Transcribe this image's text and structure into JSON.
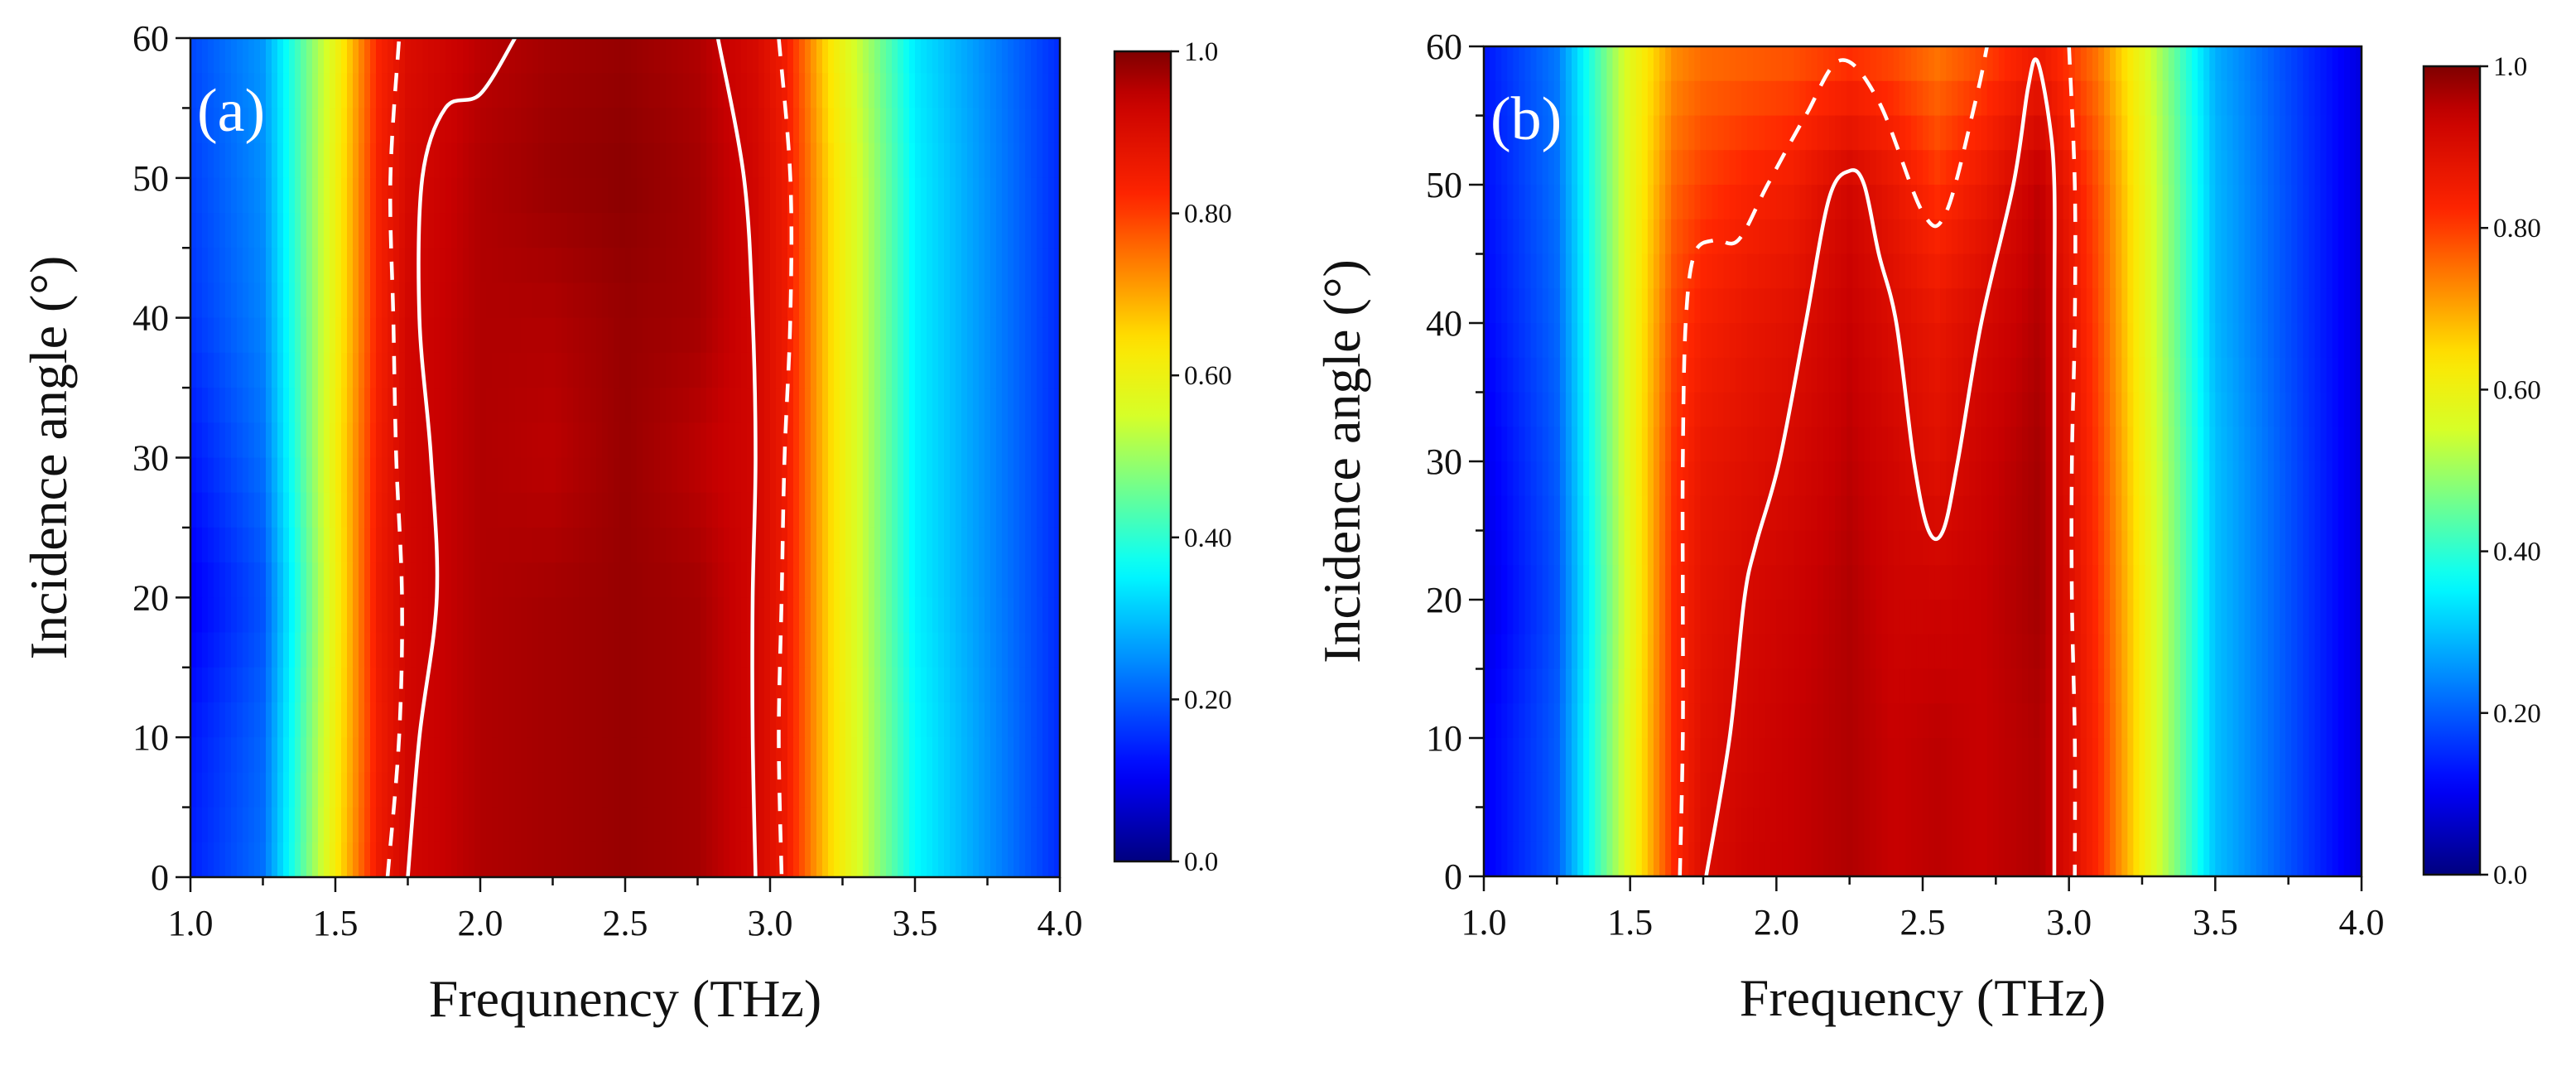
{
  "colormap": {
    "name": "jet",
    "stops": [
      {
        "t": 0.0,
        "color": "#00007f"
      },
      {
        "t": 0.11,
        "color": "#0000ff"
      },
      {
        "t": 0.36,
        "color": "#00ffff"
      },
      {
        "t": 0.55,
        "color": "#d6ff28"
      },
      {
        "t": 0.64,
        "color": "#ffe600"
      },
      {
        "t": 0.82,
        "color": "#ff2600"
      },
      {
        "t": 0.94,
        "color": "#c80000"
      },
      {
        "t": 1.0,
        "color": "#7f0000"
      }
    ]
  },
  "chart_data": [
    {
      "panel_label": "(a)",
      "type": "heatmap",
      "xlabel": "Frequnency (THz)",
      "ylabel": "Incidence angle (°)",
      "xlim": [
        1.0,
        4.0
      ],
      "ylim": [
        0,
        60
      ],
      "x_ticks": [
        "1.0",
        "1.5",
        "2.0",
        "2.5",
        "3.0",
        "3.5",
        "4.0"
      ],
      "y_ticks": [
        "0",
        "10",
        "20",
        "30",
        "40",
        "50",
        "60"
      ],
      "colorbar": {
        "range": [
          0.0,
          1.0
        ],
        "tick_labels": [
          "0.0",
          "0.20",
          "0.40",
          "0.60",
          "0.80",
          "1.0"
        ]
      },
      "x": [
        1.0,
        1.25,
        1.5,
        1.65,
        1.75,
        2.0,
        2.25,
        2.5,
        2.75,
        2.95,
        3.05,
        3.2,
        3.5,
        4.0
      ],
      "y": [
        0,
        10,
        20,
        30,
        40,
        50,
        60
      ],
      "z": [
        [
          0.14,
          0.22,
          0.62,
          0.86,
          0.92,
          0.96,
          0.97,
          0.98,
          0.97,
          0.92,
          0.86,
          0.66,
          0.36,
          0.15
        ],
        [
          0.13,
          0.21,
          0.61,
          0.85,
          0.92,
          0.96,
          0.97,
          0.98,
          0.97,
          0.92,
          0.86,
          0.66,
          0.36,
          0.15
        ],
        [
          0.1,
          0.19,
          0.6,
          0.86,
          0.92,
          0.96,
          0.97,
          0.98,
          0.97,
          0.92,
          0.86,
          0.66,
          0.35,
          0.15
        ],
        [
          0.13,
          0.22,
          0.61,
          0.85,
          0.92,
          0.96,
          0.95,
          0.98,
          0.95,
          0.92,
          0.86,
          0.66,
          0.35,
          0.15
        ],
        [
          0.16,
          0.24,
          0.6,
          0.84,
          0.92,
          0.96,
          0.96,
          0.98,
          0.97,
          0.92,
          0.86,
          0.66,
          0.35,
          0.15
        ],
        [
          0.17,
          0.25,
          0.6,
          0.84,
          0.91,
          0.96,
          0.98,
          0.99,
          0.97,
          0.92,
          0.86,
          0.66,
          0.35,
          0.15
        ],
        [
          0.18,
          0.26,
          0.59,
          0.83,
          0.9,
          0.95,
          0.97,
          0.98,
          0.96,
          0.91,
          0.85,
          0.64,
          0.34,
          0.15
        ]
      ],
      "contours": [
        {
          "level": 0.9,
          "style": "solid",
          "points": [
            [
              1.75,
              0
            ],
            [
              1.79,
              10
            ],
            [
              1.85,
              20
            ],
            [
              1.83,
              30
            ],
            [
              1.79,
              40
            ],
            [
              1.8,
              50
            ],
            [
              1.88,
              55
            ],
            [
              2.0,
              56
            ],
            [
              2.12,
              60
            ]
          ]
        },
        {
          "level": 0.9,
          "style": "solid",
          "points": [
            [
              2.82,
              60
            ],
            [
              2.91,
              50
            ],
            [
              2.94,
              40
            ],
            [
              2.95,
              30
            ],
            [
              2.94,
              20
            ],
            [
              2.94,
              10
            ],
            [
              2.95,
              0
            ]
          ]
        },
        {
          "level": 0.8,
          "style": "dashed",
          "points": [
            [
              1.68,
              0
            ],
            [
              1.72,
              10
            ],
            [
              1.73,
              20
            ],
            [
              1.71,
              30
            ],
            [
              1.7,
              40
            ],
            [
              1.69,
              50
            ],
            [
              1.72,
              60
            ]
          ]
        },
        {
          "level": 0.8,
          "style": "dashed",
          "points": [
            [
              3.03,
              60
            ],
            [
              3.07,
              50
            ],
            [
              3.07,
              40
            ],
            [
              3.05,
              30
            ],
            [
              3.04,
              20
            ],
            [
              3.03,
              10
            ],
            [
              3.04,
              0
            ]
          ]
        }
      ]
    },
    {
      "panel_label": "(b)",
      "type": "heatmap",
      "xlabel": "Frequency (THz)",
      "ylabel": "Incidence angle (°)",
      "xlim": [
        1.0,
        4.0
      ],
      "ylim": [
        0,
        60
      ],
      "x_ticks": [
        "1.0",
        "1.5",
        "2.0",
        "2.5",
        "3.0",
        "3.5",
        "4.0"
      ],
      "y_ticks": [
        "0",
        "10",
        "20",
        "30",
        "40",
        "50",
        "60"
      ],
      "colorbar": {
        "range": [
          0.0,
          1.0
        ],
        "tick_labels": [
          "0.0",
          "0.20",
          "0.40",
          "0.60",
          "0.80",
          "1.0"
        ]
      },
      "x": [
        1.0,
        1.25,
        1.5,
        1.65,
        1.75,
        1.9,
        2.05,
        2.25,
        2.4,
        2.55,
        2.7,
        2.9,
        3.0,
        3.1,
        3.25,
        3.5,
        4.0
      ],
      "y": [
        0,
        10,
        20,
        30,
        40,
        50,
        60
      ],
      "z": [
        [
          0.1,
          0.2,
          0.58,
          0.82,
          0.9,
          0.93,
          0.94,
          0.96,
          0.94,
          0.95,
          0.94,
          0.96,
          0.9,
          0.82,
          0.62,
          0.3,
          0.08
        ],
        [
          0.1,
          0.2,
          0.58,
          0.82,
          0.89,
          0.92,
          0.94,
          0.96,
          0.94,
          0.95,
          0.94,
          0.96,
          0.9,
          0.82,
          0.62,
          0.3,
          0.08
        ],
        [
          0.08,
          0.19,
          0.57,
          0.82,
          0.88,
          0.91,
          0.93,
          0.96,
          0.93,
          0.93,
          0.94,
          0.97,
          0.9,
          0.81,
          0.62,
          0.3,
          0.08
        ],
        [
          0.09,
          0.2,
          0.58,
          0.81,
          0.87,
          0.89,
          0.91,
          0.95,
          0.92,
          0.89,
          0.93,
          0.97,
          0.89,
          0.8,
          0.61,
          0.3,
          0.08
        ],
        [
          0.11,
          0.21,
          0.58,
          0.79,
          0.84,
          0.87,
          0.89,
          0.94,
          0.9,
          0.87,
          0.91,
          0.96,
          0.88,
          0.79,
          0.6,
          0.29,
          0.08
        ],
        [
          0.12,
          0.22,
          0.58,
          0.76,
          0.8,
          0.83,
          0.85,
          0.92,
          0.87,
          0.81,
          0.86,
          0.95,
          0.86,
          0.78,
          0.6,
          0.29,
          0.08
        ],
        [
          0.13,
          0.23,
          0.58,
          0.72,
          0.75,
          0.76,
          0.77,
          0.8,
          0.78,
          0.74,
          0.78,
          0.85,
          0.8,
          0.74,
          0.58,
          0.28,
          0.08
        ]
      ],
      "contours": [
        {
          "level": 0.9,
          "style": "solid",
          "points": [
            [
              1.76,
              0
            ],
            [
              1.84,
              10
            ],
            [
              1.89,
              20
            ],
            [
              1.93,
              24
            ],
            [
              2.01,
              30
            ],
            [
              2.1,
              40
            ],
            [
              2.18,
              49
            ],
            [
              2.25,
              51
            ],
            [
              2.3,
              50
            ],
            [
              2.35,
              45
            ],
            [
              2.41,
              40
            ],
            [
              2.47,
              30
            ],
            [
              2.52,
              25
            ],
            [
              2.57,
              25
            ],
            [
              2.62,
              30
            ],
            [
              2.7,
              40
            ],
            [
              2.81,
              50
            ],
            [
              2.86,
              57
            ],
            [
              2.89,
              59
            ],
            [
              2.93,
              55
            ],
            [
              2.95,
              50
            ],
            [
              2.95,
              40
            ],
            [
              2.95,
              20
            ],
            [
              2.95,
              0
            ]
          ]
        },
        {
          "level": 0.8,
          "style": "dashed",
          "points": [
            [
              1.67,
              0
            ],
            [
              1.68,
              10
            ],
            [
              1.68,
              20
            ],
            [
              1.68,
              30
            ],
            [
              1.69,
              40
            ],
            [
              1.72,
              45
            ],
            [
              1.79,
              46
            ],
            [
              1.87,
              46
            ],
            [
              1.97,
              50
            ],
            [
              2.1,
              55
            ],
            [
              2.22,
              59
            ],
            [
              2.35,
              56
            ],
            [
              2.5,
              48
            ],
            [
              2.58,
              48
            ],
            [
              2.68,
              56
            ],
            [
              2.72,
              60
            ]
          ]
        },
        {
          "level": 0.8,
          "style": "dashed",
          "points": [
            [
              3.0,
              60
            ],
            [
              3.02,
              50
            ],
            [
              3.02,
              40
            ],
            [
              3.01,
              30
            ],
            [
              3.01,
              20
            ],
            [
              3.02,
              10
            ],
            [
              3.02,
              0
            ]
          ]
        }
      ]
    }
  ]
}
